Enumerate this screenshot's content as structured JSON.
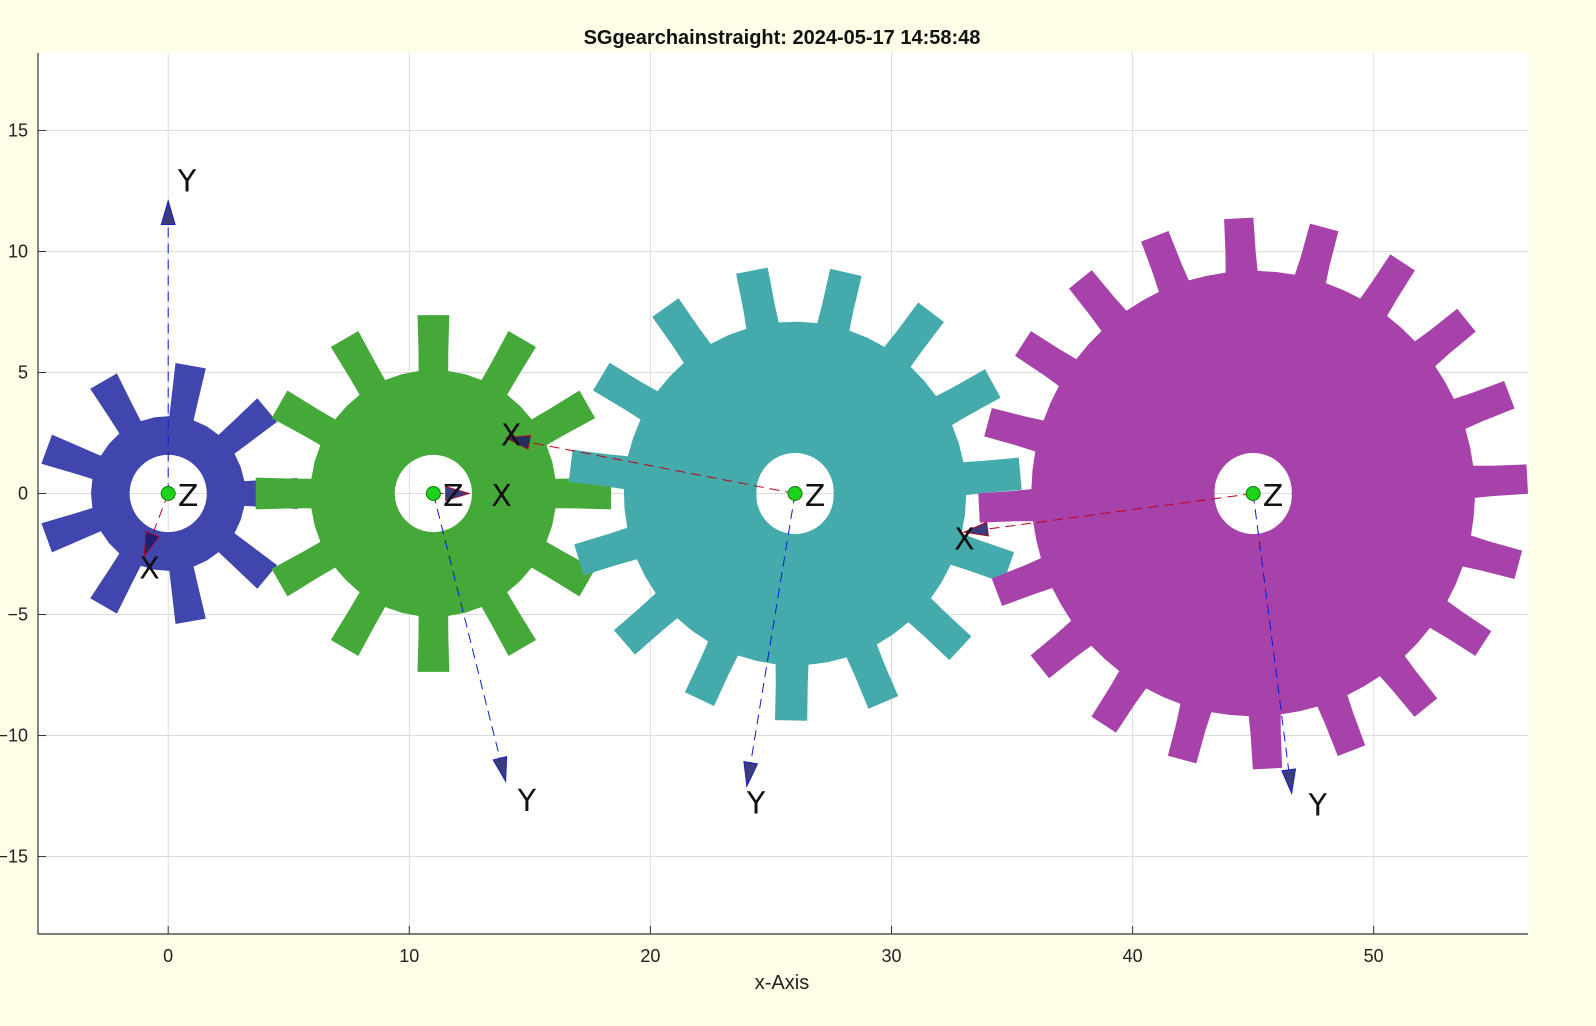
{
  "chart_data": {
    "type": "diagram",
    "title": "SGgearchainstraight: 2024-05-17 14:58:48",
    "xlabel": "x-Axis",
    "ylabel": "",
    "xlim": [
      -5.4,
      56.4
    ],
    "ylim": [
      -18.2,
      18.2
    ],
    "xticks": [
      0,
      10,
      20,
      30,
      40,
      50
    ],
    "yticks": [
      15,
      10,
      5,
      0,
      -5,
      -10,
      -15
    ],
    "grid": true,
    "gears": [
      {
        "name": "gear-1",
        "cx": 0,
        "cy": 0,
        "teeth": 9,
        "outer_radius": 5.4,
        "root_radius": 3.2,
        "bore_radius": 1.6,
        "rotation_deg": 0,
        "color": "#4046ae"
      },
      {
        "name": "gear-2",
        "cx": 11,
        "cy": 0,
        "teeth": 12,
        "outer_radius": 7.4,
        "root_radius": 5.1,
        "bore_radius": 1.6,
        "rotation_deg": 0,
        "color": "#45a93a"
      },
      {
        "name": "gear-3",
        "cx": 26,
        "cy": 0,
        "teeth": 15,
        "outer_radius": 9.4,
        "root_radius": 7.1,
        "bore_radius": 1.6,
        "rotation_deg": 5,
        "color": "#45aaab"
      },
      {
        "name": "gear-4",
        "cx": 45,
        "cy": 0,
        "teeth": 20,
        "outer_radius": 11.4,
        "root_radius": 9.2,
        "bore_radius": 1.6,
        "rotation_deg": 3,
        "color": "#a842ab"
      }
    ],
    "frames": [
      {
        "origin": [
          0,
          0
        ],
        "x_tip": [
          -1.0,
          -2.6
        ],
        "y_tip": [
          0.0,
          12.1
        ],
        "x_label": [
          -1.2,
          -3.1
        ],
        "y_label": [
          0.4,
          12.9
        ],
        "z_label": [
          0.4,
          -0.1
        ]
      },
      {
        "origin": [
          11,
          0
        ],
        "x_tip": [
          12.5,
          0.0
        ],
        "y_tip": [
          14.0,
          -11.9
        ],
        "x_label": [
          13.4,
          -0.1
        ],
        "y_label": [
          14.5,
          -12.7
        ],
        "z_label": [
          11.4,
          -0.1
        ]
      },
      {
        "origin": [
          26,
          0
        ],
        "x_tip": [
          14.0,
          2.3
        ],
        "y_tip": [
          24.0,
          -12.1
        ],
        "x_label": [
          13.8,
          2.4
        ],
        "y_label": [
          24.0,
          -12.8
        ],
        "z_label": [
          26.4,
          -0.1
        ]
      },
      {
        "origin": [
          45,
          0
        ],
        "x_tip": [
          33.0,
          -1.6
        ],
        "y_tip": [
          46.6,
          -12.4
        ],
        "x_label": [
          32.6,
          -1.9
        ],
        "y_label": [
          47.3,
          -12.9
        ],
        "z_label": [
          45.4,
          -0.1
        ]
      }
    ],
    "frame_axis_labels": {
      "x": "X",
      "y": "Y",
      "z": "Z"
    },
    "frame_colors": {
      "x_axis": "#c0001a",
      "y_axis": "#0a1ad0",
      "origin": "#1ad31a"
    }
  }
}
